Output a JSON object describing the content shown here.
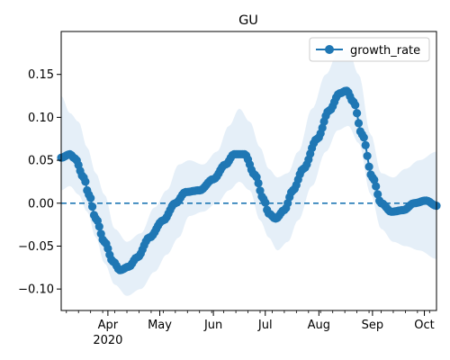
{
  "chart_data": {
    "type": "line",
    "title": "GU",
    "xlabel": "",
    "ylabel": "",
    "x_tick_labels": [
      "Apr",
      "May",
      "Jun",
      "Jul",
      "Aug",
      "Sep",
      "Oct"
    ],
    "x_tick_dates": [
      "2020-04-01",
      "2020-05-01",
      "2020-06-01",
      "2020-07-01",
      "2020-08-01",
      "2020-09-01",
      "2020-10-01"
    ],
    "x_year_label": "2020",
    "xlim": [
      "2020-03-05",
      "2020-10-08"
    ],
    "ylim": [
      -0.125,
      0.2
    ],
    "y_ticks": [
      -0.1,
      -0.05,
      0.0,
      0.05,
      0.1,
      0.15
    ],
    "y_tick_labels": [
      "−0.10",
      "−0.05",
      "0.00",
      "0.05",
      "0.10",
      "0.15"
    ],
    "legend": {
      "placement": "upper right",
      "entries": [
        "growth_rate"
      ]
    },
    "reference_line": {
      "y": 0,
      "style": "dashed"
    },
    "colors": {
      "series": "#1f77b4",
      "band": "#dce9f5"
    },
    "series": [
      {
        "name": "growth_rate",
        "marker": "circle",
        "anchors": [
          [
            "2020-03-05",
            0.053
          ],
          [
            "2020-03-10",
            0.057
          ],
          [
            "2020-03-13",
            0.052
          ],
          [
            "2020-03-18",
            0.03
          ],
          [
            "2020-03-21",
            0.01
          ],
          [
            "2020-03-25",
            -0.018
          ],
          [
            "2020-03-30",
            -0.045
          ],
          [
            "2020-04-04",
            -0.068
          ],
          [
            "2020-04-08",
            -0.078
          ],
          [
            "2020-04-13",
            -0.074
          ],
          [
            "2020-04-18",
            -0.063
          ],
          [
            "2020-04-25",
            -0.04
          ],
          [
            "2020-05-03",
            -0.02
          ],
          [
            "2020-05-10",
            0.0
          ],
          [
            "2020-05-16",
            0.013
          ],
          [
            "2020-05-24",
            0.015
          ],
          [
            "2020-06-01",
            0.028
          ],
          [
            "2020-06-08",
            0.045
          ],
          [
            "2020-06-13",
            0.057
          ],
          [
            "2020-06-19",
            0.057
          ],
          [
            "2020-06-25",
            0.033
          ],
          [
            "2020-06-30",
            0.005
          ],
          [
            "2020-07-03",
            -0.012
          ],
          [
            "2020-07-07",
            -0.018
          ],
          [
            "2020-07-12",
            -0.008
          ],
          [
            "2020-07-17",
            0.015
          ],
          [
            "2020-07-23",
            0.04
          ],
          [
            "2020-07-31",
            0.075
          ],
          [
            "2020-08-07",
            0.108
          ],
          [
            "2020-08-13",
            0.128
          ],
          [
            "2020-08-17",
            0.131
          ],
          [
            "2020-08-21",
            0.118
          ],
          [
            "2020-08-26",
            0.08
          ],
          [
            "2020-09-01",
            0.03
          ],
          [
            "2020-09-06",
            0.0
          ],
          [
            "2020-09-12",
            -0.01
          ],
          [
            "2020-09-19",
            -0.008
          ],
          [
            "2020-09-25",
            0.0
          ],
          [
            "2020-10-02",
            0.003
          ],
          [
            "2020-10-08",
            -0.003
          ]
        ]
      }
    ],
    "band": {
      "lower": [
        [
          "2020-03-05",
          0.015
        ],
        [
          "2020-03-10",
          0.02
        ],
        [
          "2020-03-15",
          0.01
        ],
        [
          "2020-03-20",
          -0.01
        ],
        [
          "2020-03-25",
          -0.04
        ],
        [
          "2020-03-30",
          -0.07
        ],
        [
          "2020-04-05",
          -0.095
        ],
        [
          "2020-04-12",
          -0.108
        ],
        [
          "2020-04-20",
          -0.1
        ],
        [
          "2020-04-28",
          -0.08
        ],
        [
          "2020-05-05",
          -0.06
        ],
        [
          "2020-05-12",
          -0.04
        ],
        [
          "2020-05-18",
          -0.015
        ],
        [
          "2020-05-26",
          -0.01
        ],
        [
          "2020-06-03",
          0.0
        ],
        [
          "2020-06-10",
          0.015
        ],
        [
          "2020-06-16",
          0.025
        ],
        [
          "2020-06-22",
          0.015
        ],
        [
          "2020-06-28",
          -0.02
        ],
        [
          "2020-07-03",
          -0.04
        ],
        [
          "2020-07-08",
          -0.055
        ],
        [
          "2020-07-14",
          -0.045
        ],
        [
          "2020-07-20",
          -0.02
        ],
        [
          "2020-07-28",
          0.02
        ],
        [
          "2020-08-05",
          0.06
        ],
        [
          "2020-08-12",
          0.085
        ],
        [
          "2020-08-18",
          0.09
        ],
        [
          "2020-08-24",
          0.07
        ],
        [
          "2020-08-31",
          0.01
        ],
        [
          "2020-09-06",
          -0.03
        ],
        [
          "2020-09-13",
          -0.045
        ],
        [
          "2020-09-20",
          -0.05
        ],
        [
          "2020-09-28",
          -0.055
        ],
        [
          "2020-10-08",
          -0.065
        ]
      ],
      "upper": [
        [
          "2020-03-05",
          0.125
        ],
        [
          "2020-03-10",
          0.105
        ],
        [
          "2020-03-15",
          0.095
        ],
        [
          "2020-03-20",
          0.065
        ],
        [
          "2020-03-25",
          0.035
        ],
        [
          "2020-03-30",
          0.01
        ],
        [
          "2020-04-05",
          -0.03
        ],
        [
          "2020-04-12",
          -0.045
        ],
        [
          "2020-04-20",
          -0.035
        ],
        [
          "2020-04-28",
          -0.005
        ],
        [
          "2020-05-05",
          0.015
        ],
        [
          "2020-05-12",
          0.045
        ],
        [
          "2020-05-18",
          0.05
        ],
        [
          "2020-05-26",
          0.045
        ],
        [
          "2020-06-03",
          0.06
        ],
        [
          "2020-06-10",
          0.09
        ],
        [
          "2020-06-16",
          0.11
        ],
        [
          "2020-06-22",
          0.095
        ],
        [
          "2020-06-28",
          0.065
        ],
        [
          "2020-07-03",
          0.04
        ],
        [
          "2020-07-08",
          0.03
        ],
        [
          "2020-07-14",
          0.035
        ],
        [
          "2020-07-20",
          0.06
        ],
        [
          "2020-07-28",
          0.11
        ],
        [
          "2020-08-05",
          0.15
        ],
        [
          "2020-08-12",
          0.175
        ],
        [
          "2020-08-18",
          0.178
        ],
        [
          "2020-08-24",
          0.15
        ],
        [
          "2020-08-31",
          0.08
        ],
        [
          "2020-09-06",
          0.035
        ],
        [
          "2020-09-13",
          0.03
        ],
        [
          "2020-09-20",
          0.04
        ],
        [
          "2020-09-28",
          0.05
        ],
        [
          "2020-10-08",
          0.06
        ]
      ]
    }
  }
}
